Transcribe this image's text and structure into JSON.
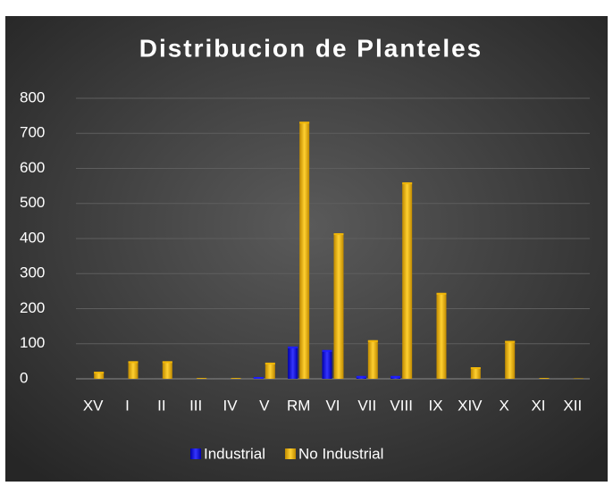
{
  "chart_data": {
    "type": "bar",
    "title": "Distribucion de Planteles",
    "categories": [
      "XV",
      "I",
      "II",
      "III",
      "IV",
      "V",
      "RM",
      "VI",
      "VII",
      "VIII",
      "IX",
      "XIV",
      "X",
      "XI",
      "XII"
    ],
    "series": [
      {
        "name": "Industrial",
        "color": "#1f1fff",
        "values": [
          0,
          0,
          0,
          0,
          0,
          5,
          92,
          82,
          8,
          8,
          0,
          0,
          0,
          0,
          0
        ]
      },
      {
        "name": "No Industrial",
        "color": "#f2b705",
        "values": [
          20,
          50,
          50,
          2,
          2,
          46,
          733,
          415,
          110,
          560,
          245,
          33,
          108,
          2,
          1
        ]
      }
    ],
    "ylim": [
      0,
      800
    ],
    "yticks": [
      0,
      100,
      200,
      300,
      400,
      500,
      600,
      700,
      800
    ],
    "grid": true,
    "legend": "bottom"
  }
}
